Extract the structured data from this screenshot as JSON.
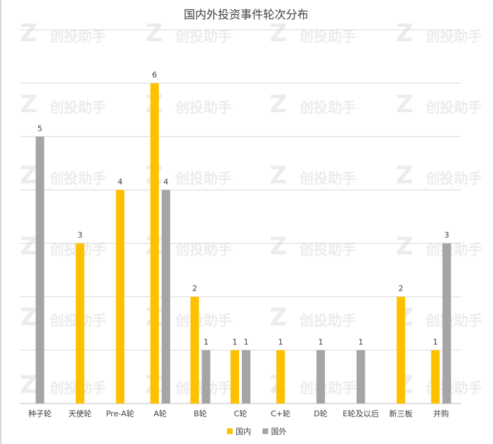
{
  "chart_data": {
    "type": "bar",
    "title": "国内外投资事件轮次分布",
    "xlabel": "",
    "ylabel": "",
    "categories": [
      "种子轮",
      "天使轮",
      "Pre-A轮",
      "A轮",
      "B轮",
      "C轮",
      "C+轮",
      "D轮",
      "E轮及以后",
      "新三板",
      "并购"
    ],
    "series": [
      {
        "name": "国内",
        "color": "#FFC000",
        "values": [
          null,
          3,
          4,
          6,
          2,
          1,
          1,
          null,
          null,
          2,
          1
        ]
      },
      {
        "name": "国外",
        "color": "#A5A5A5",
        "values": [
          5,
          null,
          null,
          4,
          1,
          1,
          null,
          1,
          1,
          null,
          3
        ]
      }
    ],
    "ylim": [
      0,
      7
    ],
    "grid": true,
    "legend": "bottom",
    "watermark": "创投助手"
  }
}
